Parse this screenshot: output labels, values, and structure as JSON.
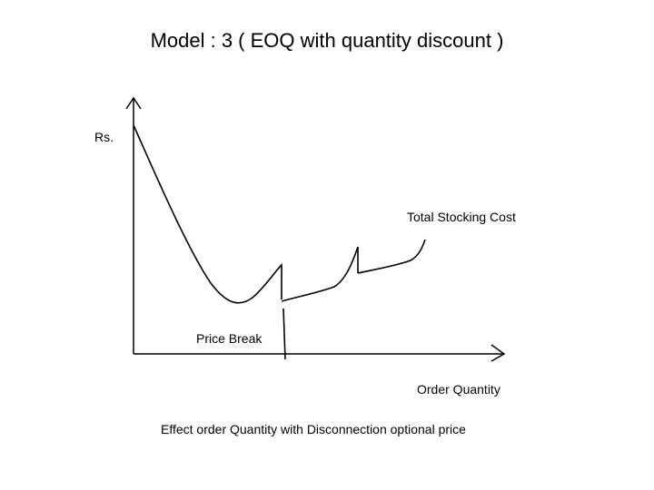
{
  "slide": {
    "title": "Model : 3 ( EOQ with quantity discount )"
  },
  "diagram": {
    "y_axis_label": "Rs.",
    "x_axis_label": "Order Quantity",
    "curve_label": "Total Stocking Cost",
    "break_label": "Price Break",
    "caption": "Effect order Quantity with Disconnection optional price",
    "line_color": "#000000"
  }
}
